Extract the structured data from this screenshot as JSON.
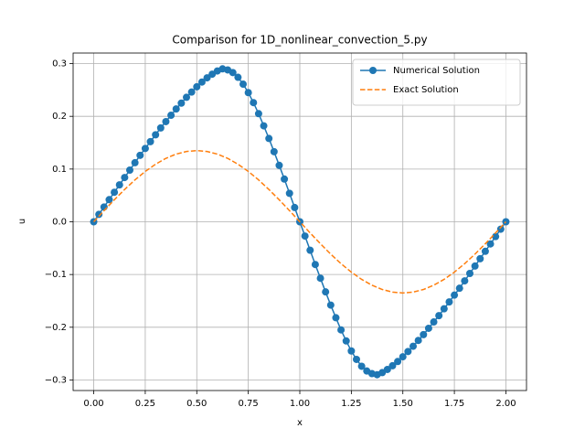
{
  "chart_data": {
    "type": "line",
    "title": "Comparison for 1D_nonlinear_convection_5.py",
    "xlabel": "x",
    "ylabel": "u",
    "xlim": [
      -0.1,
      2.1
    ],
    "ylim": [
      -0.32,
      0.32
    ],
    "xticks": [
      {
        "value": 0,
        "label": "0.00"
      },
      {
        "value": 0.25,
        "label": "0.25"
      },
      {
        "value": 0.5,
        "label": "0.50"
      },
      {
        "value": 0.75,
        "label": "0.75"
      },
      {
        "value": 1,
        "label": "1.00"
      },
      {
        "value": 1.25,
        "label": "1.25"
      },
      {
        "value": 1.5,
        "label": "1.50"
      },
      {
        "value": 1.75,
        "label": "1.75"
      },
      {
        "value": 2,
        "label": "2.00"
      }
    ],
    "yticks": [
      {
        "value": -0.3,
        "label": "−0.3"
      },
      {
        "value": -0.2,
        "label": "−0.2"
      },
      {
        "value": -0.1,
        "label": "−0.1"
      },
      {
        "value": 0,
        "label": "0.0"
      },
      0.1,
      0.2,
      0.3
    ],
    "grid": true,
    "legend": "upper right",
    "series": [
      {
        "name": "Numerical Solution",
        "color": "#1f77b4",
        "linestyle": "solid",
        "marker": "o",
        "x": [
          0,
          0.025,
          0.05,
          0.075,
          0.1,
          0.125,
          0.15,
          0.175,
          0.2,
          0.225,
          0.25,
          0.275,
          0.3,
          0.325,
          0.35,
          0.375,
          0.4,
          0.425,
          0.45,
          0.475,
          0.5,
          0.525,
          0.55,
          0.575,
          0.6,
          0.625,
          0.65,
          0.675,
          0.7,
          0.725,
          0.75,
          0.775,
          0.8,
          0.825,
          0.85,
          0.875,
          0.9,
          0.925,
          0.95,
          0.975,
          1,
          1.025,
          1.05,
          1.075,
          1.1,
          1.125,
          1.15,
          1.175,
          1.2,
          1.225,
          1.25,
          1.275,
          1.3,
          1.325,
          1.35,
          1.375,
          1.4,
          1.425,
          1.45,
          1.475,
          1.5,
          1.525,
          1.55,
          1.575,
          1.6,
          1.625,
          1.65,
          1.675,
          1.7,
          1.725,
          1.75,
          1.775,
          1.8,
          1.825,
          1.85,
          1.875,
          1.9,
          1.925,
          1.95,
          1.975,
          2
        ],
        "values": [
          0,
          0.014,
          0.028,
          0.042,
          0.056,
          0.07,
          0.084,
          0.098,
          0.112,
          0.126,
          0.139,
          0.152,
          0.165,
          0.178,
          0.19,
          0.202,
          0.214,
          0.225,
          0.236,
          0.246,
          0.256,
          0.265,
          0.273,
          0.28,
          0.286,
          0.29,
          0.288,
          0.283,
          0.274,
          0.261,
          0.245,
          0.226,
          0.205,
          0.182,
          0.158,
          0.133,
          0.107,
          0.081,
          0.054,
          0.027,
          0,
          -0.027,
          -0.054,
          -0.081,
          -0.107,
          -0.133,
          -0.158,
          -0.182,
          -0.205,
          -0.226,
          -0.245,
          -0.261,
          -0.274,
          -0.283,
          -0.288,
          -0.29,
          -0.286,
          -0.28,
          -0.273,
          -0.265,
          -0.256,
          -0.246,
          -0.236,
          -0.225,
          -0.214,
          -0.202,
          -0.19,
          -0.178,
          -0.165,
          -0.152,
          -0.139,
          -0.126,
          -0.112,
          -0.098,
          -0.084,
          -0.07,
          -0.056,
          -0.042,
          -0.028,
          -0.014,
          0
        ]
      },
      {
        "name": "Exact Solution",
        "color": "#ff7f0e",
        "linestyle": "dashed",
        "x": [
          0,
          0.05,
          0.1,
          0.15,
          0.2,
          0.25,
          0.3,
          0.35,
          0.4,
          0.45,
          0.5,
          0.55,
          0.6,
          0.65,
          0.7,
          0.75,
          0.8,
          0.85,
          0.9,
          0.95,
          1,
          1.05,
          1.1,
          1.15,
          1.2,
          1.25,
          1.3,
          1.35,
          1.4,
          1.45,
          1.5,
          1.55,
          1.6,
          1.65,
          1.7,
          1.75,
          1.8,
          1.85,
          1.9,
          1.95,
          2
        ],
        "values": [
          0,
          0.0211,
          0.0417,
          0.0613,
          0.0794,
          0.0955,
          0.1092,
          0.1203,
          0.1284,
          0.1333,
          0.135,
          0.1333,
          0.1284,
          0.1203,
          0.1092,
          0.0955,
          0.0794,
          0.0613,
          0.0417,
          0.0211,
          0,
          -0.0211,
          -0.0417,
          -0.0613,
          -0.0794,
          -0.0955,
          -0.1092,
          -0.1203,
          -0.1284,
          -0.1333,
          -0.135,
          -0.1333,
          -0.1284,
          -0.1203,
          -0.1092,
          -0.0955,
          -0.0794,
          -0.0613,
          -0.0417,
          -0.0211,
          0
        ]
      }
    ]
  }
}
